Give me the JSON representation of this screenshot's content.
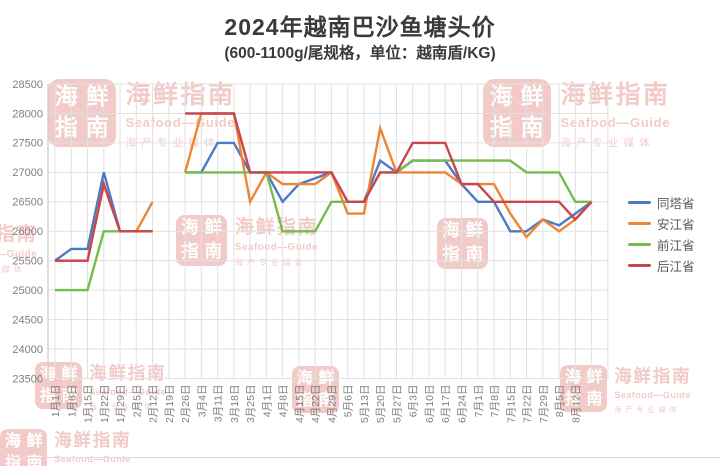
{
  "header": {
    "title": "2024年越南巴沙鱼塘头价",
    "subtitle": "(600-1100g/尾规格，单位：越南盾/KG)"
  },
  "chart_data": {
    "type": "line",
    "title": "2024年越南巴沙鱼塘头价",
    "subtitle": "(600-1100g/尾规格，单位：越南盾/KG)",
    "ylabel": "",
    "xlabel": "",
    "ylim": [
      23500,
      28500
    ],
    "y_tick_step": 500,
    "y_ticks": [
      "28500",
      "28000",
      "27500",
      "27000",
      "26500",
      "26000",
      "25500",
      "25000",
      "24500",
      "24000",
      "23500"
    ],
    "grid": true,
    "legend_position": "right",
    "note_gap": "2月19日 has no data (line break in all series)",
    "categories": [
      "1月1日",
      "1月8日",
      "1月15日",
      "1月22日",
      "1月29日",
      "2月5日",
      "2月12日",
      "2月19日",
      "2月26日",
      "3月4日",
      "3月11日",
      "3月18日",
      "3月25日",
      "4月1日",
      "4月8日",
      "4月15日",
      "4月22日",
      "4月29日",
      "5月6日",
      "5月13日",
      "5月20日",
      "5月27日",
      "6月3日",
      "6月10日",
      "6月17日",
      "6月24日",
      "7月1日",
      "7月8日",
      "7月15日",
      "7月22日",
      "7月29日",
      "8月5日",
      "8月12日",
      ""
    ],
    "series": [
      {
        "name": "同塔省",
        "color": "#4E79C4",
        "values": [
          25500,
          25700,
          25700,
          27000,
          26000,
          26000,
          26000,
          null,
          27000,
          27000,
          27500,
          27500,
          27000,
          27000,
          26500,
          26800,
          26900,
          27000,
          26500,
          26500,
          27200,
          27000,
          27200,
          27200,
          27200,
          26800,
          26500,
          26500,
          26000,
          26000,
          26200,
          26100,
          26300,
          26500
        ]
      },
      {
        "name": "安江省",
        "color": "#ED8533",
        "values": [
          25500,
          25500,
          25500,
          26800,
          26000,
          26000,
          26500,
          null,
          27000,
          28000,
          28000,
          28000,
          26500,
          27000,
          26800,
          26800,
          26800,
          27000,
          26300,
          26300,
          27750,
          27000,
          27000,
          27000,
          27000,
          26800,
          26800,
          26800,
          26300,
          25900,
          26200,
          26000,
          26200,
          26500
        ]
      },
      {
        "name": "前江省",
        "color": "#74BC4C",
        "values": [
          25000,
          25000,
          25000,
          26000,
          26000,
          26000,
          26000,
          null,
          27000,
          27000,
          27000,
          27000,
          27000,
          27000,
          26000,
          26000,
          26000,
          26500,
          26500,
          26500,
          27000,
          27000,
          27200,
          27200,
          27200,
          27200,
          27200,
          27200,
          27200,
          27000,
          27000,
          27000,
          26500,
          26500
        ]
      },
      {
        "name": "后江省",
        "color": "#C9464F",
        "values": [
          25500,
          25500,
          25500,
          26800,
          26000,
          26000,
          26000,
          null,
          28000,
          28000,
          28000,
          28000,
          27000,
          27000,
          27000,
          27000,
          27000,
          27000,
          26500,
          26500,
          27000,
          27000,
          27500,
          27500,
          27500,
          26800,
          26800,
          26500,
          26500,
          26500,
          26500,
          26500,
          26200,
          26500
        ]
      }
    ]
  },
  "watermark": {
    "seal_chars": [
      "海",
      "鲜",
      "指",
      "南"
    ],
    "brand": "海鲜指南",
    "brand_en": "Seafood—Guide",
    "tagline": "海产专业媒体"
  }
}
